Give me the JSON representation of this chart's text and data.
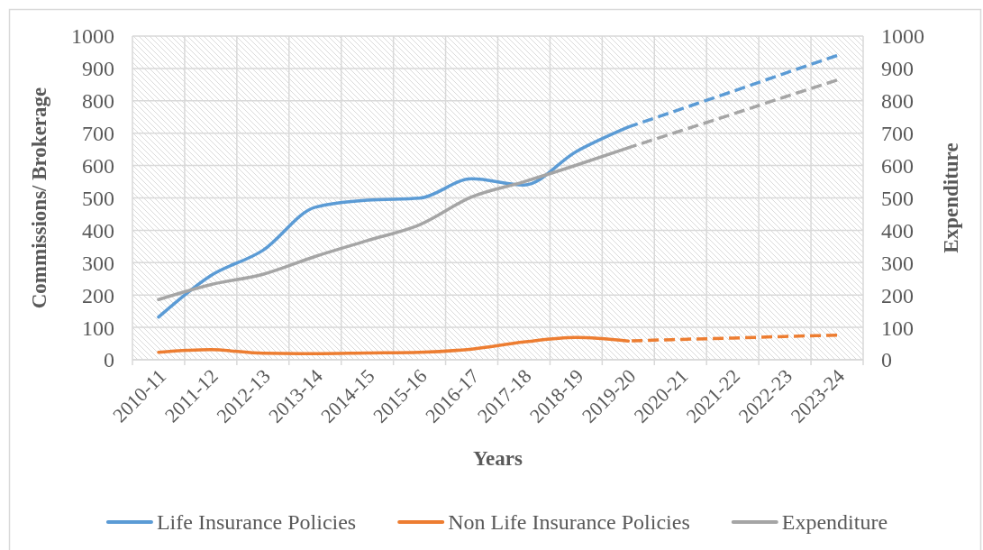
{
  "chart_data": {
    "type": "line",
    "xlabel": "Years",
    "ylabel": "Commissions/ Brokerage",
    "y2label": "Expenditure",
    "categories": [
      "2010-11",
      "2011-12",
      "2012-13",
      "2013-14",
      "2014-15",
      "2015-16",
      "2016-17",
      "2017-18",
      "2018-19",
      "2019-20",
      "2020-21",
      "2021-22",
      "2022-23",
      "2023-24"
    ],
    "ylim": [
      0,
      1000
    ],
    "yticks": [
      0,
      100,
      200,
      300,
      400,
      500,
      600,
      700,
      800,
      900,
      1000
    ],
    "y2lim": [
      0,
      1000
    ],
    "y2ticks": [
      0,
      100,
      200,
      300,
      400,
      500,
      600,
      700,
      800,
      900,
      1000
    ],
    "grid": true,
    "legend": "bottom",
    "series": [
      {
        "name": "Life Insurance Policies",
        "color": "#5b9bd5",
        "line_style": "solid",
        "values": [
          132,
          260,
          338,
          471,
          493,
          499,
          559,
          540,
          643,
          719,
          null,
          null,
          null,
          null
        ]
      },
      {
        "color": "#5b9bd5",
        "line_style": "dashed",
        "values": [
          null,
          null,
          null,
          null,
          null,
          null,
          null,
          null,
          null,
          719,
          774,
          829,
          885,
          940
        ]
      },
      {
        "name": "Non Life Insurance Policies",
        "color": "#ed7d31",
        "line_style": "solid",
        "values": [
          23,
          31,
          20,
          19,
          21,
          23,
          33,
          55,
          69,
          58,
          null,
          null,
          null,
          null
        ]
      },
      {
        "color": "#ed7d31",
        "line_style": "dashed",
        "values": [
          null,
          null,
          null,
          null,
          null,
          null,
          null,
          null,
          null,
          58,
          63,
          67,
          72,
          76
        ]
      },
      {
        "name": "Expenditure",
        "color": "#a5a5a5",
        "line_style": "solid",
        "axis": "y2",
        "values": [
          186,
          232,
          264,
          319,
          368,
          417,
          503,
          550,
          601,
          655,
          null,
          null,
          null,
          null
        ]
      },
      {
        "color": "#a5a5a5",
        "line_style": "dashed",
        "axis": "y2",
        "values": [
          null,
          null,
          null,
          null,
          null,
          null,
          null,
          null,
          null,
          655,
          707,
          759,
          812,
          864
        ]
      }
    ]
  }
}
